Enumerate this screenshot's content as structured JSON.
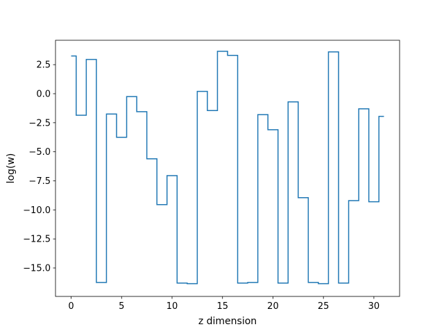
{
  "chart_data": {
    "type": "line",
    "drawstyle": "steps-mid",
    "title": "",
    "xlabel": "z dimension",
    "ylabel": "log(w)",
    "xlim": [
      -1.55,
      32.55
    ],
    "ylim": [
      -17.45,
      4.6
    ],
    "xticks": [
      0,
      5,
      10,
      15,
      20,
      25,
      30
    ],
    "xtick_labels": [
      "0",
      "5",
      "10",
      "15",
      "20",
      "25",
      "30"
    ],
    "yticks": [
      2.5,
      0.0,
      -2.5,
      -5.0,
      -7.5,
      -10.0,
      -12.5,
      -15.0
    ],
    "ytick_labels": [
      "2.5",
      "0.0",
      "−2.5",
      "−5.0",
      "−7.5",
      "−10.0",
      "−12.5",
      "−15.0"
    ],
    "grid": false,
    "legend": false,
    "line_color": "#1f77b4",
    "series": [
      {
        "x": [
          0,
          1,
          2,
          3,
          4,
          5,
          6,
          7,
          8,
          9,
          10,
          11,
          12,
          13,
          14,
          15,
          16,
          17,
          18,
          19,
          20,
          21,
          22,
          23,
          24,
          25,
          26,
          27,
          28,
          29,
          30,
          31
        ],
        "values": [
          3.25,
          -1.85,
          2.95,
          -16.25,
          -1.75,
          -3.75,
          -0.25,
          -1.55,
          -5.6,
          -9.55,
          -7.05,
          -16.3,
          -16.35,
          0.2,
          -1.45,
          3.65,
          3.3,
          -16.3,
          -16.25,
          -1.8,
          -3.1,
          -16.3,
          -0.7,
          -8.95,
          -16.25,
          -16.35,
          3.6,
          -16.3,
          -9.2,
          -1.3,
          -9.3,
          -1.95
        ]
      }
    ]
  }
}
